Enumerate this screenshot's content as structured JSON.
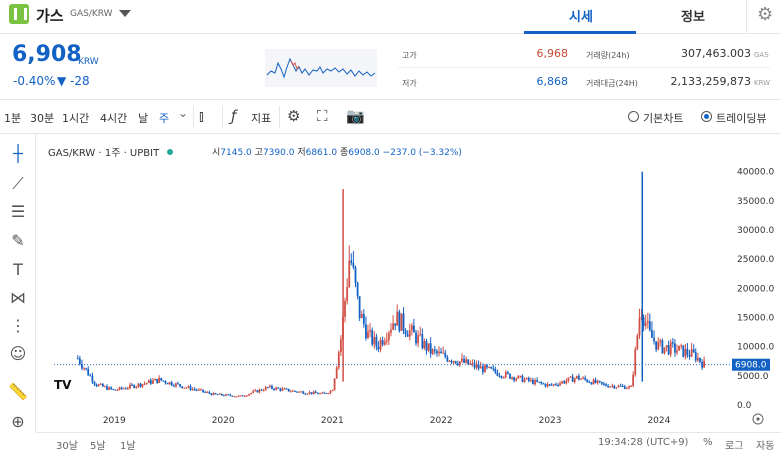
{
  "header": {
    "coin_name": "가스",
    "coin_pair": "GAS/KRW",
    "tab_quote": "시세",
    "tab_info": "정보"
  },
  "price": {
    "current": "6,908",
    "unit": "KRW",
    "change_pct": "-0.40%",
    "change_abs": "▼ -28"
  },
  "stats": {
    "high_label": "고가",
    "high_value": "6,968",
    "low_label": "저가",
    "low_value": "6,868",
    "volume_label": "거래량(24h)",
    "volume_value": "307,463.003",
    "volume_unit": "GAS",
    "amount_label": "거래대금(24H)",
    "amount_value": "2,133,259,873",
    "amount_unit": "KRW"
  },
  "toolbar": {
    "intervals": [
      "1분",
      "30분",
      "1시간",
      "4시간",
      "날",
      "주"
    ],
    "indicator_label": "지표",
    "basic_chart": "기본차트",
    "trading_view": "트레이딩뷰"
  },
  "chart": {
    "legend": "GAS/KRW · 1주 · UPBIT",
    "o_label": "시",
    "o_value": "7145.0",
    "h_label": "고",
    "h_value": "7390.0",
    "l_label": "저",
    "l_value": "6861.0",
    "c_label": "종",
    "c_value": "6908.0",
    "change": "−237.0 (−3.32%)",
    "price_tag": "6908.0",
    "y_ticks": [
      "40000.0",
      "35000.0",
      "30000.0",
      "25000.0",
      "20000.0",
      "15000.0",
      "10000.0",
      "5000.0",
      "0.0"
    ],
    "x_ticks": [
      "2019",
      "2020",
      "2021",
      "2022",
      "2023",
      "2024"
    ],
    "logo": "TV"
  },
  "footer": {
    "ranges": [
      "30날",
      "5날",
      "1날"
    ],
    "time": "19:34:28 (UTC+9)",
    "pct": "%",
    "log": "로그",
    "auto": "자동"
  },
  "chart_data": {
    "type": "candlestick",
    "x": [
      "2018-09",
      "2018-11",
      "2019-01",
      "2019-03",
      "2019-06",
      "2019-09",
      "2019-12",
      "2020-03",
      "2020-06",
      "2020-09",
      "2020-12",
      "2021-01",
      "2021-02",
      "2021-03",
      "2021-04",
      "2021-05",
      "2021-06",
      "2021-08",
      "2021-10",
      "2021-12",
      "2022-02",
      "2022-05",
      "2022-08",
      "2022-11",
      "2023-01",
      "2023-04",
      "2023-07",
      "2023-10",
      "2023-11",
      "2023-12",
      "2024-01",
      "2024-03",
      "2024-05",
      "2024-06"
    ],
    "y": [
      8000,
      3500,
      2500,
      3200,
      4300,
      3000,
      1800,
      1500,
      3000,
      2300,
      1900,
      2500,
      12000,
      26000,
      16000,
      12000,
      10000,
      15000,
      12000,
      9000,
      8000,
      6500,
      5200,
      4000,
      3300,
      4700,
      3400,
      3000,
      17000,
      12000,
      10000,
      9500,
      8500,
      6908
    ],
    "ylim": [
      0,
      42000
    ],
    "spikes": [
      {
        "x": "2021-02",
        "high": 37000
      },
      {
        "x": "2023-11",
        "high": 40000
      }
    ],
    "last_price": 6908
  }
}
